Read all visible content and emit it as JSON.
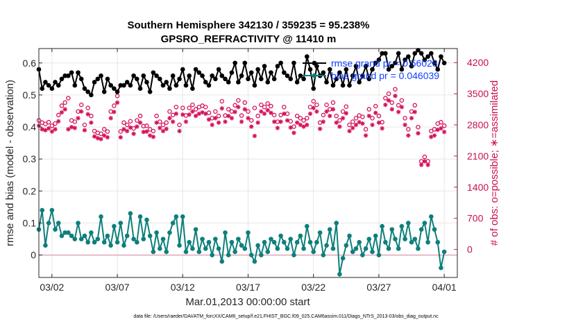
{
  "chart_data": {
    "type": "line",
    "title_line1": "Southern Hemisphere 342130 / 359235 = 95.238%",
    "title_line2": "GPSRO_REFRACTIVITY @ 11410 m",
    "xlabel": "Mar.01,2013 00:00:00 start",
    "ylabel": "rmse and bias (model - observation)",
    "ylabel_right": "# of obs: o=possible; ∗=assimilated",
    "xlim": [
      0,
      32
    ],
    "ylim": [
      -0.07,
      0.645
    ],
    "ylim_right": [
      -630,
      4515
    ],
    "x_ticks": [
      1.0,
      6.0,
      11.0,
      16.0,
      21.0,
      26.0,
      31.0
    ],
    "x_tick_labels": [
      "03/02",
      "03/07",
      "03/12",
      "03/17",
      "03/22",
      "03/27",
      "04/01"
    ],
    "y_ticks": [
      0,
      0.1,
      0.2,
      0.3,
      0.4,
      0.5,
      0.6
    ],
    "y_tick_labels": [
      "0",
      "0.1",
      "0.2",
      "0.3",
      "0.4",
      "0.5",
      "0.6"
    ],
    "y_ticks_right": [
      0,
      700,
      1400,
      2100,
      2800,
      3500,
      4200
    ],
    "y_tick_labels_right": [
      "0",
      "700",
      "1400",
      "2100",
      "2800",
      "3500",
      "4200"
    ],
    "grid": true,
    "legend_position": "top-right",
    "footnote": "data file: /Users/raeder/DAI/ATM_forcXX/CAM6_setup/f.e21.FHIST_BGC.f09_025.CAM6assim.011/Diags_NTrS_2013-03/obs_diag_output.nc",
    "colors": {
      "rmse": "#000000",
      "bias": "#0e7f7b",
      "obs": "#d4115a",
      "zero_line": "#dda8bb",
      "legend_text": "#1240ff"
    },
    "series": [
      {
        "name": "rmse grand pr = 0.56028",
        "role": "rmse",
        "x": [
          0.0,
          0.25,
          0.5,
          0.75,
          1.0,
          1.25,
          1.5,
          1.75,
          2.0,
          2.25,
          2.5,
          2.75,
          3.0,
          3.25,
          3.5,
          3.75,
          4.0,
          4.25,
          4.5,
          4.75,
          5.0,
          5.25,
          5.5,
          5.75,
          6.0,
          6.25,
          6.5,
          6.75,
          7.0,
          7.25,
          7.5,
          7.75,
          8.0,
          8.25,
          8.5,
          8.75,
          9.0,
          9.25,
          9.5,
          9.75,
          10.0,
          10.25,
          10.5,
          10.75,
          11.0,
          11.25,
          11.5,
          11.75,
          12.0,
          12.25,
          12.5,
          12.75,
          13.0,
          13.25,
          13.5,
          13.75,
          14.0,
          14.25,
          14.5,
          14.75,
          15.0,
          15.25,
          15.5,
          15.75,
          16.0,
          16.25,
          16.5,
          16.75,
          17.0,
          17.25,
          17.5,
          17.75,
          18.0,
          18.25,
          18.5,
          18.75,
          19.0,
          19.25,
          19.5,
          19.75,
          20.0,
          20.25,
          20.5,
          20.75,
          21.0,
          21.25,
          21.5,
          21.75,
          22.0,
          22.25,
          22.5,
          22.75,
          23.0,
          23.25,
          23.5,
          23.75,
          24.0,
          24.25,
          24.5,
          24.75,
          25.0,
          25.25,
          25.5,
          25.75,
          26.0,
          26.25,
          26.5,
          26.75,
          27.0,
          27.25,
          27.5,
          27.75,
          28.0,
          28.25,
          28.5,
          28.75,
          29.0,
          29.25,
          29.5,
          29.75,
          30.0,
          30.25,
          30.5,
          30.75,
          31.0
        ],
        "values": [
          0.58,
          0.52,
          0.54,
          0.53,
          0.52,
          0.54,
          0.53,
          0.55,
          0.56,
          0.56,
          0.57,
          0.53,
          0.57,
          0.55,
          0.52,
          0.51,
          0.5,
          0.54,
          0.55,
          0.56,
          0.51,
          0.55,
          0.53,
          0.52,
          0.51,
          0.53,
          0.53,
          0.54,
          0.53,
          0.56,
          0.55,
          0.52,
          0.56,
          0.54,
          0.51,
          0.57,
          0.56,
          0.55,
          0.53,
          0.54,
          0.52,
          0.56,
          0.53,
          0.55,
          0.58,
          0.53,
          0.56,
          0.52,
          0.58,
          0.57,
          0.56,
          0.54,
          0.53,
          0.56,
          0.55,
          0.58,
          0.56,
          0.55,
          0.54,
          0.57,
          0.6,
          0.54,
          0.56,
          0.6,
          0.55,
          0.57,
          0.53,
          0.58,
          0.55,
          0.59,
          0.54,
          0.57,
          0.55,
          0.59,
          0.6,
          0.57,
          0.56,
          0.55,
          0.6,
          0.54,
          0.56,
          0.55,
          0.62,
          0.58,
          0.52,
          0.59,
          0.56,
          0.57,
          0.54,
          0.58,
          0.53,
          0.55,
          0.57,
          0.53,
          0.58,
          0.53,
          0.56,
          0.59,
          0.54,
          0.56,
          0.59,
          0.55,
          0.58,
          0.6,
          0.61,
          0.63,
          0.63,
          0.58,
          0.59,
          0.6,
          0.63,
          0.58,
          0.61,
          0.62,
          0.59,
          0.63,
          0.64,
          0.63,
          0.61,
          0.62,
          0.63,
          0.6,
          0.58,
          0.62,
          0.6
        ]
      },
      {
        "name": "bias grand pr = 0.046039",
        "role": "bias",
        "x": [
          0.0,
          0.25,
          0.5,
          0.75,
          1.0,
          1.25,
          1.5,
          1.75,
          2.0,
          2.25,
          2.5,
          2.75,
          3.0,
          3.25,
          3.5,
          3.75,
          4.0,
          4.25,
          4.5,
          4.75,
          5.0,
          5.25,
          5.5,
          5.75,
          6.0,
          6.25,
          6.5,
          6.75,
          7.0,
          7.25,
          7.5,
          7.75,
          8.0,
          8.25,
          8.5,
          8.75,
          9.0,
          9.25,
          9.5,
          9.75,
          10.0,
          10.25,
          10.5,
          10.75,
          11.0,
          11.25,
          11.5,
          11.75,
          12.0,
          12.25,
          12.5,
          12.75,
          13.0,
          13.25,
          13.5,
          13.75,
          14.0,
          14.25,
          14.5,
          14.75,
          15.0,
          15.25,
          15.5,
          15.75,
          16.0,
          16.25,
          16.5,
          16.75,
          17.0,
          17.25,
          17.5,
          17.75,
          18.0,
          18.25,
          18.5,
          18.75,
          19.0,
          19.25,
          19.5,
          19.75,
          20.0,
          20.25,
          20.5,
          20.75,
          21.0,
          21.25,
          21.5,
          21.75,
          22.0,
          22.25,
          22.5,
          22.75,
          23.0,
          23.25,
          23.5,
          23.75,
          24.0,
          24.25,
          24.5,
          24.75,
          25.0,
          25.25,
          25.5,
          25.75,
          26.0,
          26.25,
          26.5,
          26.75,
          27.0,
          27.25,
          27.5,
          27.75,
          28.0,
          28.25,
          28.5,
          28.75,
          29.0,
          29.25,
          29.5,
          29.75,
          30.0,
          30.25,
          30.5,
          30.75,
          31.0
        ],
        "values": [
          0.08,
          0.14,
          0.03,
          0.1,
          0.14,
          0.08,
          0.1,
          0.06,
          0.07,
          0.07,
          0.06,
          0.05,
          0.1,
          0.05,
          0.06,
          0.04,
          0.07,
          0.04,
          0.05,
          0.12,
          0.04,
          0.06,
          0.03,
          0.09,
          0.04,
          0.1,
          0.03,
          0.06,
          0.13,
          0.05,
          0.04,
          0.12,
          0.05,
          0.11,
          0.06,
          0.01,
          0.07,
          0.02,
          0.05,
          0.01,
          0.07,
          0.1,
          0.12,
          0.03,
          0.12,
          0.01,
          0.04,
          0.02,
          0.08,
          0.01,
          0.05,
          0.02,
          0.04,
          0.0,
          0.05,
          0.02,
          -0.02,
          0.07,
          0.0,
          0.04,
          0.01,
          0.05,
          0.03,
          0.02,
          0.07,
          0.0,
          -0.02,
          0.03,
          0.0,
          0.04,
          0.01,
          0.05,
          0.04,
          0.02,
          0.06,
          0.04,
          0.02,
          0.05,
          0.0,
          0.04,
          0.06,
          0.02,
          0.09,
          0.04,
          0.01,
          0.04,
          0.07,
          0.0,
          0.03,
          0.08,
          0.02,
          0.1,
          -0.06,
          -0.01,
          0.03,
          0.06,
          0.01,
          0.02,
          0.04,
          0.0,
          0.02,
          0.05,
          0.01,
          0.06,
          0.0,
          0.09,
          0.04,
          0.02,
          0.08,
          0.05,
          0.02,
          0.09,
          0.05,
          0.1,
          0.04,
          0.05,
          0.02,
          0.08,
          0.1,
          0.04,
          0.12,
          0.08,
          0.04,
          -0.04,
          0.01
        ]
      },
      {
        "name": "possible",
        "role": "obs_possible",
        "axis": "right",
        "x": [
          0.0,
          0.25,
          0.5,
          0.75,
          1.0,
          1.25,
          1.5,
          1.75,
          2.0,
          2.25,
          2.5,
          2.75,
          3.0,
          3.25,
          3.5,
          3.75,
          4.0,
          4.25,
          4.5,
          4.75,
          5.0,
          5.25,
          5.5,
          5.75,
          6.0,
          6.25,
          6.5,
          6.75,
          7.0,
          7.25,
          7.5,
          7.75,
          8.0,
          8.25,
          8.5,
          8.75,
          9.0,
          9.25,
          9.5,
          9.75,
          10.0,
          10.25,
          10.5,
          10.75,
          11.0,
          11.25,
          11.5,
          11.75,
          12.0,
          12.25,
          12.5,
          12.75,
          13.0,
          13.25,
          13.5,
          13.75,
          14.0,
          14.25,
          14.5,
          14.75,
          15.0,
          15.25,
          15.5,
          15.75,
          16.0,
          16.25,
          16.5,
          16.75,
          17.0,
          17.25,
          17.5,
          17.75,
          18.0,
          18.25,
          18.5,
          18.75,
          19.0,
          19.25,
          19.5,
          19.75,
          20.0,
          20.25,
          20.5,
          20.75,
          21.0,
          21.25,
          21.5,
          21.75,
          22.0,
          22.25,
          22.5,
          22.75,
          23.0,
          23.25,
          23.5,
          23.75,
          24.0,
          24.25,
          24.5,
          24.75,
          25.0,
          25.25,
          25.5,
          25.75,
          26.0,
          26.25,
          26.5,
          26.75,
          27.0,
          27.25,
          27.5,
          27.75,
          28.0,
          28.25,
          28.5,
          28.75,
          29.0,
          29.25,
          29.5,
          29.75,
          30.0,
          30.25,
          30.5,
          30.75,
          31.0
        ],
        "values": [
          2900,
          2850,
          2820,
          2860,
          2780,
          2830,
          3020,
          3230,
          3300,
          3400,
          2900,
          2870,
          3100,
          3250,
          2800,
          3180,
          3000,
          2660,
          2620,
          2600,
          2700,
          2650,
          3100,
          3230,
          3450,
          2650,
          2850,
          2800,
          2880,
          2720,
          2900,
          3000,
          2770,
          2780,
          2700,
          2660,
          3000,
          2870,
          2800,
          2850,
          3100,
          3020,
          3200,
          2800,
          3180,
          3010,
          3180,
          3250,
          3150,
          3200,
          3230,
          3200,
          3070,
          2950,
          3100,
          3000,
          3330,
          3010,
          3150,
          3100,
          3240,
          3350,
          3010,
          3300,
          3100,
          2900,
          3180,
          3000,
          3250,
          3200,
          3280,
          3220,
          3020,
          2870,
          3020,
          3200,
          3050,
          2880,
          2760,
          3000,
          2950,
          2900,
          2950,
          3200,
          3330,
          3250,
          2850,
          3020,
          3250,
          3150,
          3300,
          3000,
          2900,
          3100,
          3210,
          2800,
          2870,
          2950,
          3010,
          2980,
          2700,
          3150,
          2950,
          3220,
          3000,
          2860,
          3400,
          3500,
          3300,
          3600,
          3240,
          3350,
          2950,
          2700,
          3100,
          3240,
          2750,
          1980,
          2080,
          1980,
          2660,
          2700,
          2830,
          2860,
          2780
        ]
      },
      {
        "name": "assimilated",
        "role": "obs_assimilated",
        "axis": "right",
        "x": [
          0.0,
          0.25,
          0.5,
          0.75,
          1.0,
          1.25,
          1.5,
          1.75,
          2.0,
          2.25,
          2.5,
          2.75,
          3.0,
          3.25,
          3.5,
          3.75,
          4.0,
          4.25,
          4.5,
          4.75,
          5.0,
          5.25,
          5.5,
          5.75,
          6.0,
          6.25,
          6.5,
          6.75,
          7.0,
          7.25,
          7.5,
          7.75,
          8.0,
          8.25,
          8.5,
          8.75,
          9.0,
          9.25,
          9.5,
          9.75,
          10.0,
          10.25,
          10.5,
          10.75,
          11.0,
          11.25,
          11.5,
          11.75,
          12.0,
          12.25,
          12.5,
          12.75,
          13.0,
          13.25,
          13.5,
          13.75,
          14.0,
          14.25,
          14.5,
          14.75,
          15.0,
          15.25,
          15.5,
          15.75,
          16.0,
          16.25,
          16.5,
          16.75,
          17.0,
          17.25,
          17.5,
          17.75,
          18.0,
          18.25,
          18.5,
          18.75,
          19.0,
          19.25,
          19.5,
          19.75,
          20.0,
          20.25,
          20.5,
          20.75,
          21.0,
          21.25,
          21.5,
          21.75,
          22.0,
          22.25,
          22.5,
          22.75,
          23.0,
          23.25,
          23.5,
          23.75,
          24.0,
          24.25,
          24.5,
          24.75,
          25.0,
          25.25,
          25.5,
          25.75,
          26.0,
          26.25,
          26.5,
          26.75,
          27.0,
          27.25,
          27.5,
          27.75,
          28.0,
          28.25,
          28.5,
          28.75,
          29.0,
          29.25,
          29.5,
          29.75,
          30.0,
          30.25,
          30.5,
          30.75,
          31.0
        ],
        "values": [
          2780,
          2700,
          2680,
          2720,
          2650,
          2700,
          2880,
          3080,
          3150,
          2700,
          2750,
          2730,
          2950,
          3100,
          2680,
          3040,
          2850,
          2540,
          2500,
          2480,
          2560,
          2520,
          2950,
          3090,
          3300,
          2520,
          2700,
          2660,
          2740,
          2600,
          2760,
          2850,
          2640,
          2650,
          2560,
          2530,
          2850,
          2730,
          2660,
          2710,
          2950,
          2870,
          3050,
          2660,
          3030,
          2870,
          3030,
          3100,
          3000,
          3050,
          3080,
          3050,
          2920,
          2800,
          2950,
          2850,
          3170,
          2870,
          3000,
          2950,
          3090,
          3200,
          2870,
          3150,
          2950,
          2760,
          2550,
          2850,
          3100,
          3050,
          3130,
          3070,
          2870,
          2730,
          2870,
          3050,
          2900,
          2740,
          2620,
          2850,
          2800,
          2760,
          2800,
          3050,
          3180,
          3100,
          2710,
          2870,
          3100,
          3000,
          3150,
          2850,
          2760,
          2950,
          3060,
          2660,
          2730,
          2800,
          2860,
          2830,
          2560,
          3000,
          2800,
          3070,
          2850,
          2720,
          3250,
          3350,
          3150,
          3450,
          3090,
          3200,
          2800,
          2560,
          2950,
          3090,
          2610,
          1900,
          1980,
          1900,
          2530,
          2560,
          2690,
          2720,
          2640
        ]
      }
    ]
  }
}
